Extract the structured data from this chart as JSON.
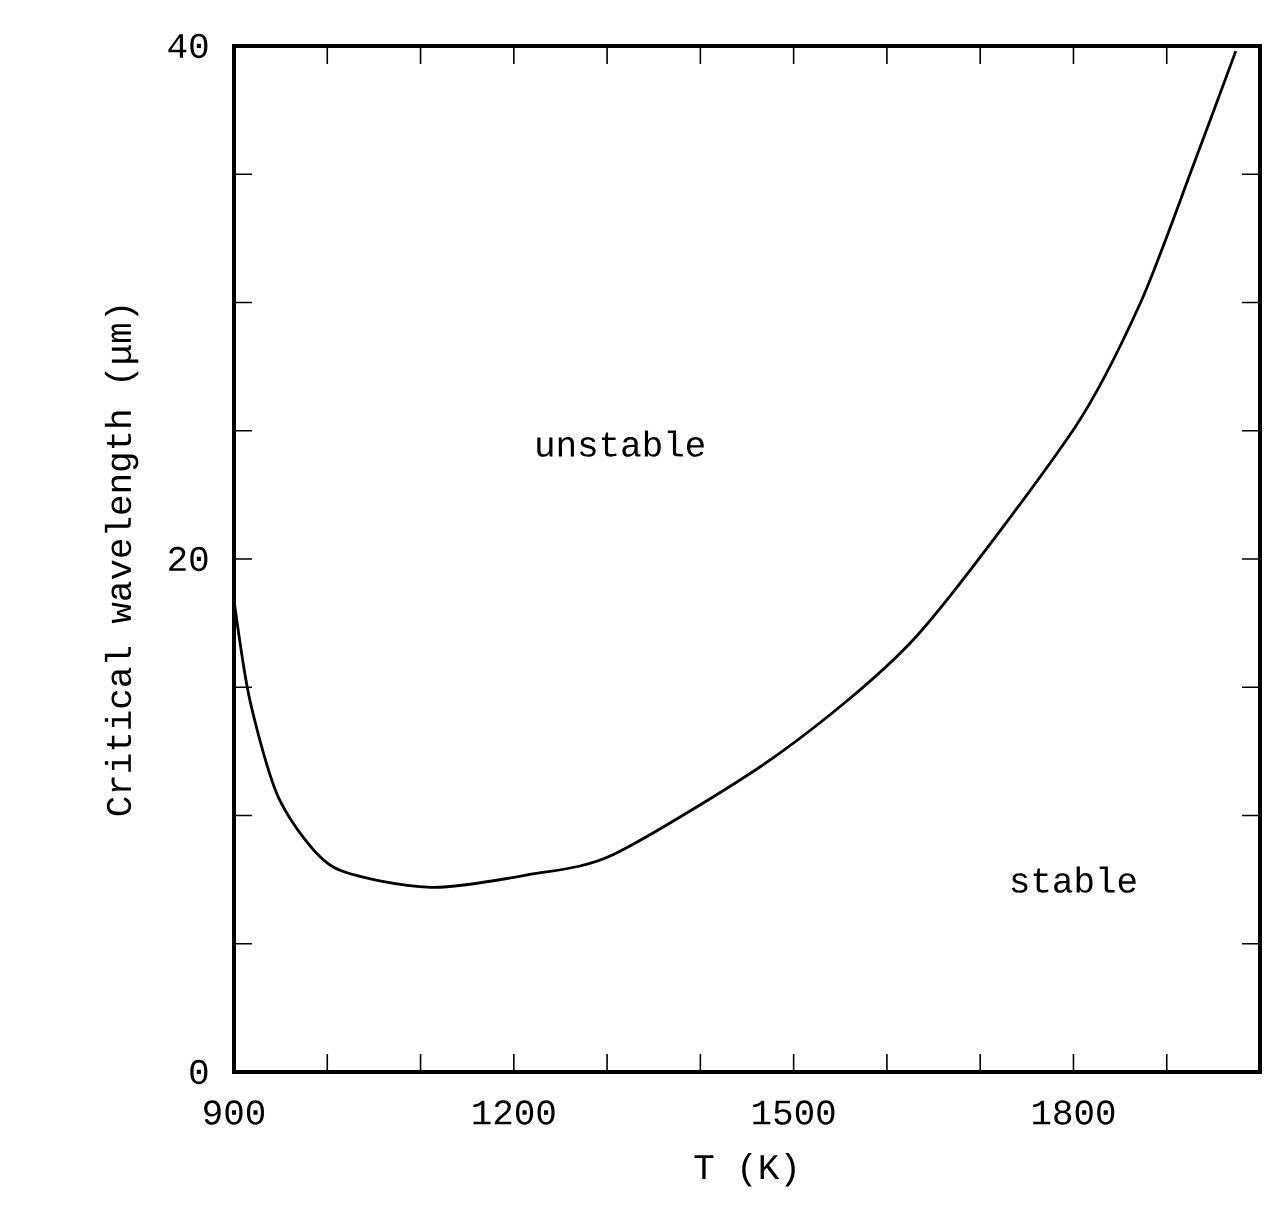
{
  "chart_data": {
    "type": "line",
    "xlabel": "T (K)",
    "ylabel": "Critical wavelength (μm)",
    "xlim": [
      900,
      2000
    ],
    "ylim": [
      0,
      40
    ],
    "xticks": [
      900,
      {
        "value": 1000,
        "label": null
      },
      {
        "value": 1100,
        "label": null
      },
      1200,
      {
        "value": 1300,
        "label": null
      },
      {
        "value": 1400,
        "label": null
      },
      1500,
      {
        "value": 1600,
        "label": null
      },
      {
        "value": 1700,
        "label": null
      },
      1800,
      {
        "value": 1900,
        "label": null
      }
    ],
    "yticks": [
      0,
      {
        "value": 5,
        "label": null
      },
      {
        "value": 10,
        "label": null
      },
      {
        "value": 15,
        "label": null
      },
      20,
      {
        "value": 25,
        "label": null
      },
      {
        "value": 30,
        "label": null
      },
      {
        "value": 35,
        "label": null
      },
      40
    ],
    "series": [
      {
        "color": "#000000",
        "x": [
          900,
          917,
          949,
          1006,
          1111,
          1217,
          1308,
          1484,
          1632,
          1801,
          1872,
          1928,
          1974
        ],
        "values": [
          18.4,
          14.5,
          10.6,
          8.0,
          7.2,
          7.7,
          8.5,
          12.4,
          17.0,
          25.1,
          30.0,
          35.3,
          39.8
        ]
      }
    ],
    "annotations": [
      "unstable",
      "stable"
    ],
    "marker": "none",
    "line_style": "solid"
  }
}
